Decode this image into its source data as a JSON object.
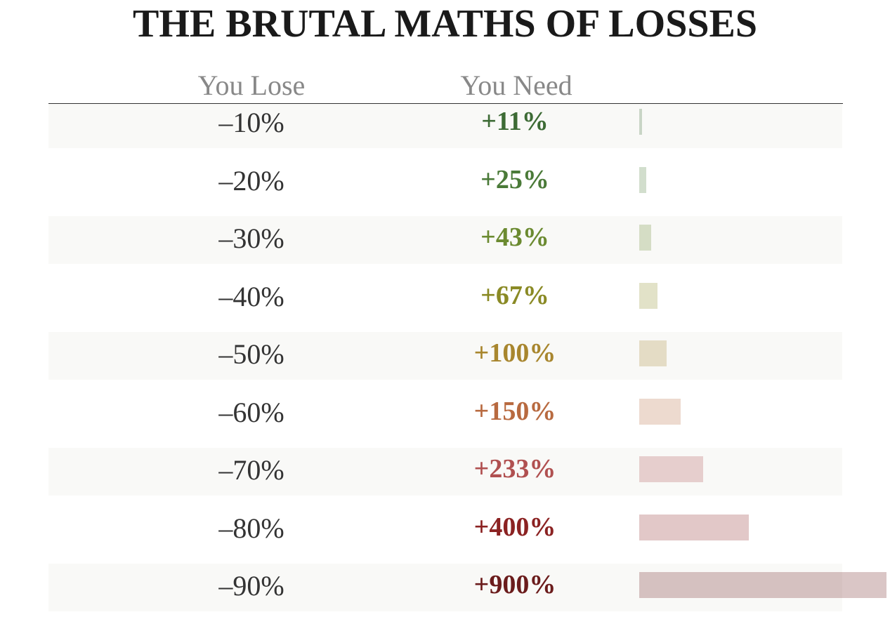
{
  "chart_data": {
    "type": "table",
    "title": "THE BRUTAL MATHS OF LOSSES",
    "columns": [
      "You Lose",
      "You Need"
    ],
    "rows": [
      {
        "lose": "–10%",
        "need": "+11%",
        "value": 11,
        "color": "#3d6b35"
      },
      {
        "lose": "–20%",
        "need": "+25%",
        "value": 25,
        "color": "#4a7a38"
      },
      {
        "lose": "–30%",
        "need": "+43%",
        "value": 43,
        "color": "#6b8a30"
      },
      {
        "lose": "–40%",
        "need": "+67%",
        "value": 67,
        "color": "#8a8a25"
      },
      {
        "lose": "–50%",
        "need": "+100%",
        "value": 100,
        "color": "#a8862e"
      },
      {
        "lose": "–60%",
        "need": "+150%",
        "value": 150,
        "color": "#b86a40"
      },
      {
        "lose": "–70%",
        "need": "+233%",
        "value": 233,
        "color": "#b05050"
      },
      {
        "lose": "–80%",
        "need": "+400%",
        "value": 400,
        "color": "#8b2222"
      },
      {
        "lose": "–90%",
        "need": "+900%",
        "value": 900,
        "color": "#6b1c1c"
      }
    ]
  }
}
